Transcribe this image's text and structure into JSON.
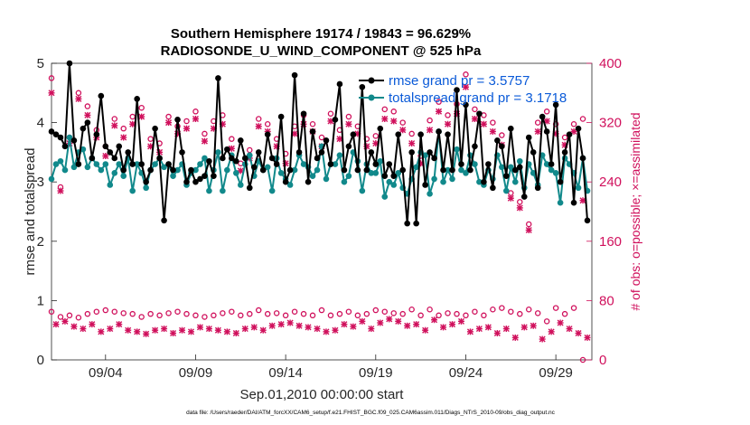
{
  "colors": {
    "rmse": "#000000",
    "totalspread": "#11898b",
    "obs": "#d0105c",
    "legend_text": "#0a5ad8"
  },
  "chart_data": {
    "type": "line",
    "title_line1": "Southern Hemisphere 19174 / 19843 = 96.629%",
    "title_line2": "RADIOSONDE_U_WIND_COMPONENT @ 525 hPa",
    "xlabel": "Sep.01,2010 00:00:00 start",
    "ylabel": "rmse and totalspread",
    "y2label": "# of obs: o=possible; ×=assimilated",
    "xlim": [
      0,
      120
    ],
    "ylim": [
      0,
      5
    ],
    "y2lim": [
      0,
      400
    ],
    "x_ticks": [
      {
        "x": 12,
        "label": "09/04"
      },
      {
        "x": 32,
        "label": "09/09"
      },
      {
        "x": 52,
        "label": "09/14"
      },
      {
        "x": 72,
        "label": "09/19"
      },
      {
        "x": 92,
        "label": "09/24"
      },
      {
        "x": 112,
        "label": "09/29"
      }
    ],
    "y_ticks": [
      {
        "v": 0,
        "label": "0"
      },
      {
        "v": 1,
        "label": "1"
      },
      {
        "v": 2,
        "label": "2"
      },
      {
        "v": 3,
        "label": "3"
      },
      {
        "v": 4,
        "label": "4"
      },
      {
        "v": 5,
        "label": "5"
      }
    ],
    "y2_ticks": [
      {
        "v": 0,
        "label": "0"
      },
      {
        "v": 80,
        "label": "80"
      },
      {
        "v": 160,
        "label": "160"
      },
      {
        "v": 240,
        "label": "240"
      },
      {
        "v": 320,
        "label": "320"
      },
      {
        "v": 400,
        "label": "400"
      }
    ],
    "legend": {
      "position": "top-right",
      "entries": [
        "rmse grand pr = 3.5757",
        "totalspread grand pr = 3.1718"
      ]
    },
    "footnote": "data file: /Users/raeder/DAI/ATM_forcXX/CAM6_setup/f.e21.FHIST_BGC.f09_025.CAM6assim.011/Diags_NTrS_2010-09/obs_diag_output.nc",
    "series": [
      {
        "name": "rmse",
        "x": [
          0,
          1,
          2,
          3,
          4,
          5,
          6,
          7,
          8,
          9,
          10,
          11,
          12,
          13,
          14,
          15,
          16,
          17,
          18,
          19,
          20,
          21,
          22,
          23,
          24,
          25,
          26,
          27,
          28,
          29,
          30,
          31,
          32,
          33,
          34,
          35,
          36,
          37,
          38,
          39,
          40,
          41,
          42,
          43,
          44,
          45,
          46,
          47,
          48,
          49,
          50,
          51,
          52,
          53,
          54,
          55,
          56,
          57,
          58,
          59,
          60,
          61,
          62,
          63,
          64,
          65,
          66,
          67,
          68,
          69,
          70,
          71,
          72,
          73,
          74,
          75,
          76,
          77,
          78,
          79,
          80,
          81,
          82,
          83,
          84,
          85,
          86,
          87,
          88,
          89,
          90,
          91,
          92,
          93,
          94,
          95,
          96,
          97,
          98,
          99,
          100,
          101,
          102,
          103,
          104,
          105,
          106,
          107,
          108,
          109,
          110,
          111,
          112,
          113,
          114,
          115,
          116,
          117,
          118,
          119
        ],
        "values": [
          3.85,
          3.8,
          3.75,
          3.6,
          5.0,
          3.7,
          3.3,
          3.9,
          4.0,
          3.4,
          3.8,
          4.45,
          3.6,
          3.5,
          3.4,
          3.6,
          3.2,
          3.5,
          3.3,
          4.4,
          3.3,
          3.0,
          3.2,
          3.9,
          3.4,
          2.35,
          3.3,
          3.2,
          4.05,
          3.5,
          3.0,
          3.2,
          3.0,
          3.05,
          3.1,
          3.35,
          3.1,
          4.75,
          3.4,
          3.55,
          3.4,
          3.35,
          3.7,
          3.4,
          2.9,
          3.25,
          3.5,
          3.2,
          3.8,
          3.4,
          3.3,
          4.1,
          3.0,
          3.2,
          4.8,
          3.5,
          4.15,
          3.0,
          3.85,
          3.4,
          3.5,
          3.7,
          3.3,
          4.05,
          4.65,
          3.2,
          3.6,
          3.8,
          3.2,
          4.6,
          3.2,
          3.5,
          3.3,
          3.9,
          3.1,
          3.3,
          3.1,
          3.8,
          3.2,
          2.3,
          3.5,
          2.3,
          3.8,
          2.95,
          3.5,
          3.4,
          3.85,
          3.2,
          3.8,
          3.2,
          4.55,
          3.3,
          4.3,
          3.2,
          3.6,
          4.15,
          3.0,
          3.3,
          2.9,
          3.7,
          3.6,
          3.1,
          3.9,
          3.2,
          3.25,
          2.75,
          3.75,
          3.5,
          2.9,
          4.1,
          3.85,
          3.3,
          4.3,
          3.0,
          3.5,
          3.8,
          2.65,
          3.9,
          3.4,
          2.35
        ]
      },
      {
        "name": "totalspread",
        "x": [
          0,
          1,
          2,
          3,
          4,
          5,
          6,
          7,
          8,
          9,
          10,
          11,
          12,
          13,
          14,
          15,
          16,
          17,
          18,
          19,
          20,
          21,
          22,
          23,
          24,
          25,
          26,
          27,
          28,
          29,
          30,
          31,
          32,
          33,
          34,
          35,
          36,
          37,
          38,
          39,
          40,
          41,
          42,
          43,
          44,
          45,
          46,
          47,
          48,
          49,
          50,
          51,
          52,
          53,
          54,
          55,
          56,
          57,
          58,
          59,
          60,
          61,
          62,
          63,
          64,
          65,
          66,
          67,
          68,
          69,
          70,
          71,
          72,
          73,
          74,
          75,
          76,
          77,
          78,
          79,
          80,
          81,
          82,
          83,
          84,
          85,
          86,
          87,
          88,
          89,
          90,
          91,
          92,
          93,
          94,
          95,
          96,
          97,
          98,
          99,
          100,
          101,
          102,
          103,
          104,
          105,
          106,
          107,
          108,
          109,
          110,
          111,
          112,
          113,
          114,
          115,
          116,
          117,
          118,
          119
        ],
        "values": [
          3.05,
          3.3,
          3.35,
          3.2,
          3.75,
          3.25,
          3.5,
          3.55,
          3.25,
          3.4,
          3.3,
          3.2,
          3.3,
          2.95,
          3.15,
          3.3,
          3.1,
          3.4,
          2.85,
          3.3,
          3.15,
          2.9,
          3.2,
          3.3,
          3.4,
          3.25,
          3.3,
          3.1,
          3.2,
          3.3,
          2.95,
          3.15,
          3.2,
          3.3,
          3.4,
          2.85,
          3.2,
          3.5,
          2.85,
          3.2,
          3.45,
          3.15,
          2.95,
          3.3,
          3.45,
          3.1,
          3.35,
          3.2,
          3.25,
          2.85,
          3.4,
          3.15,
          3.05,
          2.95,
          3.2,
          3.45,
          3.3,
          3.25,
          3.1,
          3.2,
          3.6,
          3.05,
          3.3,
          3.3,
          3.45,
          3.0,
          3.1,
          3.5,
          3.35,
          2.85,
          3.3,
          3.15,
          3.15,
          3.35,
          2.75,
          3.0,
          2.95,
          3.15,
          2.9,
          2.8,
          3.05,
          3.25,
          3.5,
          3.45,
          2.8,
          3.05,
          3.85,
          3.0,
          3.2,
          3.05,
          3.55,
          3.2,
          3.15,
          3.45,
          3.3,
          3.0,
          2.95,
          3.2,
          3.05,
          3.45,
          3.25,
          2.85,
          3.25,
          3.0,
          3.35,
          2.9,
          3.3,
          3.15,
          2.95,
          3.45,
          3.3,
          3.2,
          3.15,
          2.65,
          3.4,
          3.3,
          3.15,
          2.9,
          3.4,
          2.85
        ]
      },
      {
        "name": "obs possible",
        "marker": "o",
        "x": [
          0,
          2,
          4,
          6,
          8,
          10,
          12,
          14,
          16,
          18,
          20,
          22,
          24,
          26,
          28,
          30,
          32,
          34,
          36,
          38,
          40,
          42,
          44,
          46,
          48,
          50,
          52,
          54,
          56,
          58,
          60,
          62,
          64,
          66,
          68,
          70,
          72,
          74,
          76,
          78,
          80,
          82,
          84,
          86,
          88,
          90,
          92,
          94,
          96,
          98,
          100,
          102,
          104,
          106,
          108,
          110,
          112,
          114,
          116,
          118,
          0,
          2,
          4,
          6,
          8,
          10,
          12,
          14,
          16,
          18,
          20,
          22,
          24,
          26,
          28,
          30,
          32,
          34,
          36,
          38,
          40,
          42,
          44,
          46,
          48,
          50,
          52,
          54,
          56,
          58,
          60,
          62,
          64,
          66,
          68,
          70,
          72,
          74,
          76,
          78,
          80,
          82,
          84,
          86,
          88,
          90,
          92,
          94,
          96,
          98,
          100,
          102,
          104,
          106,
          108,
          110,
          112,
          114,
          116,
          118
        ],
        "values": [
          380,
          233,
          300,
          360,
          342,
          310,
          288,
          325,
          312,
          328,
          340,
          298,
          292,
          328,
          315,
          322,
          335,
          305,
          322,
          330,
          298,
          265,
          283,
          325,
          318,
          298,
          278,
          315,
          330,
          318,
          300,
          332,
          310,
          328,
          315,
          298,
          302,
          338,
          335,
          320,
          305,
          275,
          323,
          348,
          330,
          345,
          385,
          338,
          330,
          320,
          303,
          225,
          213,
          183,
          320,
          335,
          318,
          300,
          318,
          325,
          65,
          58,
          60,
          57,
          62,
          65,
          67,
          65,
          63,
          62,
          58,
          62,
          60,
          63,
          65,
          62,
          60,
          58,
          60,
          63,
          65,
          60,
          62,
          67,
          62,
          63,
          60,
          65,
          62,
          60,
          67,
          60,
          62,
          65,
          60,
          62,
          67,
          65,
          63,
          62,
          68,
          60,
          68,
          60,
          63,
          62,
          60,
          65,
          60,
          68,
          70,
          65,
          62,
          68,
          63,
          52,
          70,
          62,
          70,
          0
        ]
      },
      {
        "name": "obs assimilated",
        "marker": "x",
        "x": [
          0,
          2,
          4,
          6,
          8,
          10,
          12,
          14,
          16,
          18,
          20,
          22,
          24,
          26,
          28,
          30,
          32,
          34,
          36,
          38,
          40,
          42,
          44,
          46,
          48,
          50,
          52,
          54,
          56,
          58,
          60,
          62,
          64,
          66,
          68,
          70,
          72,
          74,
          76,
          78,
          80,
          82,
          84,
          86,
          88,
          90,
          92,
          94,
          96,
          98,
          100,
          102,
          104,
          106,
          108,
          110,
          112,
          114,
          116,
          118,
          1,
          3,
          5,
          7,
          9,
          11,
          13,
          15,
          17,
          19,
          21,
          23,
          25,
          27,
          29,
          31,
          33,
          35,
          37,
          39,
          41,
          43,
          45,
          47,
          49,
          51,
          53,
          55,
          57,
          59,
          61,
          63,
          65,
          67,
          69,
          71,
          73,
          75,
          77,
          79,
          81,
          83,
          85,
          87,
          89,
          91,
          93,
          95,
          97,
          99,
          101,
          103,
          105,
          107,
          109,
          111,
          113,
          115,
          117,
          119
        ],
        "values": [
          360,
          228,
          292,
          352,
          330,
          300,
          275,
          316,
          300,
          318,
          328,
          288,
          280,
          320,
          305,
          312,
          325,
          295,
          312,
          318,
          285,
          255,
          272,
          315,
          308,
          288,
          265,
          305,
          318,
          308,
          288,
          322,
          298,
          318,
          305,
          288,
          292,
          325,
          322,
          310,
          292,
          265,
          310,
          335,
          318,
          332,
          368,
          325,
          318,
          308,
          290,
          218,
          205,
          175,
          308,
          322,
          305,
          290,
          308,
          215,
          48,
          52,
          45,
          42,
          48,
          38,
          42,
          48,
          40,
          38,
          35,
          40,
          42,
          36,
          40,
          38,
          44,
          42,
          40,
          38,
          36,
          42,
          44,
          40,
          46,
          48,
          50,
          46,
          44,
          42,
          38,
          40,
          48,
          45,
          52,
          42,
          50,
          55,
          52,
          46,
          48,
          40,
          54,
          44,
          48,
          52,
          38,
          42,
          44,
          36,
          42,
          30,
          44,
          46,
          28,
          38,
          50,
          42,
          36,
          30
        ]
      }
    ]
  }
}
